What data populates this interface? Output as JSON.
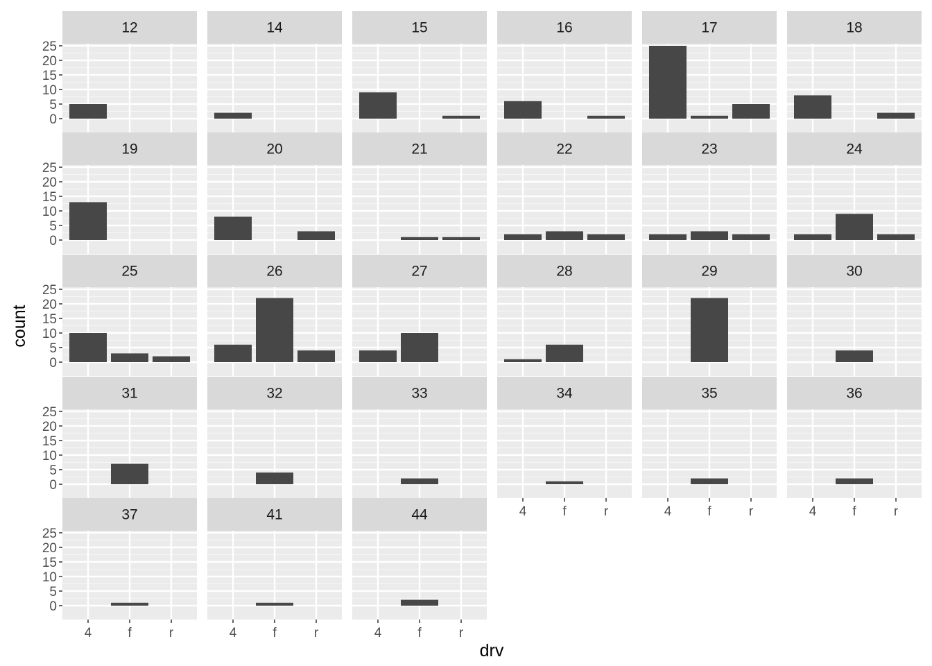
{
  "chart_data": {
    "type": "bar",
    "layout": "facet_wrap",
    "facet_variable": "hwy",
    "xlabel": "drv",
    "ylabel": "count",
    "categories": [
      "4",
      "f",
      "r"
    ],
    "y_ticks": [
      0,
      5,
      10,
      15,
      20,
      25
    ],
    "ylim": [
      0,
      25
    ],
    "grid": true,
    "bar_color": "#474747",
    "panel_background": "#ebebeb",
    "strip_background": "#d9d9d9",
    "panels": [
      {
        "label": "12",
        "values": [
          5,
          0,
          0
        ]
      },
      {
        "label": "14",
        "values": [
          2,
          0,
          0
        ]
      },
      {
        "label": "15",
        "values": [
          9,
          0,
          1
        ]
      },
      {
        "label": "16",
        "values": [
          6,
          0,
          1
        ]
      },
      {
        "label": "17",
        "values": [
          25,
          1,
          5
        ]
      },
      {
        "label": "18",
        "values": [
          8,
          0,
          2
        ]
      },
      {
        "label": "19",
        "values": [
          13,
          0,
          0
        ]
      },
      {
        "label": "20",
        "values": [
          8,
          0,
          3
        ]
      },
      {
        "label": "21",
        "values": [
          0,
          1,
          1
        ]
      },
      {
        "label": "22",
        "values": [
          2,
          3,
          2
        ]
      },
      {
        "label": "23",
        "values": [
          2,
          3,
          2
        ]
      },
      {
        "label": "24",
        "values": [
          2,
          9,
          2
        ]
      },
      {
        "label": "25",
        "values": [
          10,
          3,
          2
        ]
      },
      {
        "label": "26",
        "values": [
          6,
          22,
          4
        ]
      },
      {
        "label": "27",
        "values": [
          4,
          10,
          0
        ]
      },
      {
        "label": "28",
        "values": [
          1,
          6,
          0
        ]
      },
      {
        "label": "29",
        "values": [
          0,
          22,
          0
        ]
      },
      {
        "label": "30",
        "values": [
          0,
          4,
          0
        ]
      },
      {
        "label": "31",
        "values": [
          0,
          7,
          0
        ]
      },
      {
        "label": "32",
        "values": [
          0,
          4,
          0
        ]
      },
      {
        "label": "33",
        "values": [
          0,
          2,
          0
        ]
      },
      {
        "label": "34",
        "values": [
          0,
          1,
          0
        ]
      },
      {
        "label": "35",
        "values": [
          0,
          2,
          0
        ]
      },
      {
        "label": "36",
        "values": [
          0,
          2,
          0
        ]
      },
      {
        "label": "37",
        "values": [
          0,
          1,
          0
        ]
      },
      {
        "label": "41",
        "values": [
          0,
          1,
          0
        ]
      },
      {
        "label": "44",
        "values": [
          0,
          2,
          0
        ]
      }
    ]
  }
}
